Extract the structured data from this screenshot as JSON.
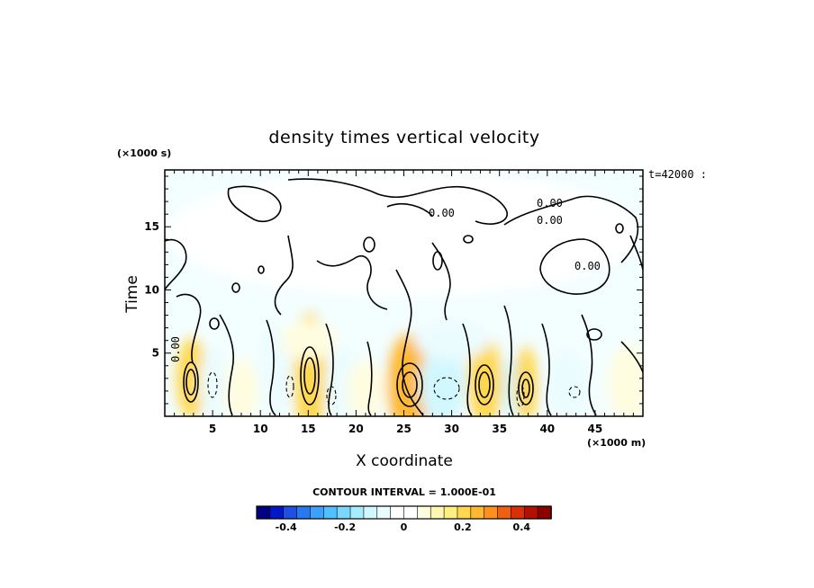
{
  "chart_data": {
    "type": "heatmap",
    "title": "density times vertical velocity",
    "xlabel": "X coordinate",
    "ylabel": "Time",
    "x_units": "(×1000 m)",
    "y_units": "(×1000 s)",
    "time_stamp": "t=42000 :",
    "xlim": [
      0,
      50
    ],
    "ylim": [
      0,
      19.5
    ],
    "x_ticks": [
      5,
      10,
      15,
      20,
      25,
      30,
      35,
      40,
      45
    ],
    "y_ticks": [
      5,
      10,
      15
    ],
    "contour_labels": [
      "0.00",
      "0.00",
      "0.00",
      "0.00",
      "0.00"
    ],
    "contour_interval_text": "CONTOUR INTERVAL = 1.000E-01",
    "colorbar": {
      "range": [
        -0.5,
        0.5
      ],
      "tick_values": [
        -0.4,
        -0.2,
        0,
        0.2,
        0.4
      ],
      "tick_labels": [
        "-0.4",
        "-0.2",
        "0",
        "0.2",
        "0.4"
      ],
      "colors_low_to_high": [
        "#000080",
        "#0018c8",
        "#1e50e6",
        "#2878f0",
        "#3ca0ff",
        "#50c0ff",
        "#78d8ff",
        "#a6ecff",
        "#d2f8ff",
        "#ebfcff",
        "#ffffff",
        "#ffffff",
        "#fffde0",
        "#fff8b0",
        "#ffee80",
        "#ffd850",
        "#ffb830",
        "#ff9020",
        "#f06010",
        "#d83008",
        "#b41000",
        "#8c0000"
      ]
    },
    "cells": [
      {
        "x": 2.8,
        "t": 3.0,
        "v": 0.21,
        "rx": 1.6,
        "rt": 3.2
      },
      {
        "x": 5.0,
        "t": 2.5,
        "v": -0.09,
        "rx": 1.4,
        "rt": 3.0
      },
      {
        "x": 8.0,
        "t": 2.0,
        "v": 0.08,
        "rx": 1.8,
        "rt": 2.6
      },
      {
        "x": 11.5,
        "t": 3.5,
        "v": -0.08,
        "rx": 1.6,
        "rt": 3.5
      },
      {
        "x": 15.2,
        "t": 3.2,
        "v": 0.22,
        "rx": 1.7,
        "rt": 5.0
      },
      {
        "x": 18.5,
        "t": 2.5,
        "v": -0.09,
        "rx": 1.8,
        "rt": 3.0
      },
      {
        "x": 21.0,
        "t": 2.0,
        "v": 0.05,
        "rx": 2.0,
        "rt": 2.5
      },
      {
        "x": 25.5,
        "t": 2.5,
        "v": 0.24,
        "rx": 2.2,
        "rt": 4.0
      },
      {
        "x": 29.0,
        "t": 2.5,
        "v": -0.1,
        "rx": 2.4,
        "rt": 3.2
      },
      {
        "x": 33.5,
        "t": 2.7,
        "v": 0.21,
        "rx": 1.8,
        "rt": 3.5
      },
      {
        "x": 36.3,
        "t": 2.3,
        "v": -0.12,
        "rx": 1.0,
        "rt": 2.5
      },
      {
        "x": 37.8,
        "t": 2.5,
        "v": 0.19,
        "rx": 1.2,
        "rt": 3.0
      },
      {
        "x": 42.0,
        "t": 2.5,
        "v": -0.07,
        "rx": 2.2,
        "rt": 2.8
      },
      {
        "x": 48.5,
        "t": 2.5,
        "v": 0.09,
        "rx": 2.2,
        "rt": 3.2
      },
      {
        "x": 30.0,
        "t": 6.0,
        "v": -0.05,
        "rx": 4.0,
        "rt": 1.5
      },
      {
        "x": 15.0,
        "t": 6.0,
        "v": 0.06,
        "rx": 3.0,
        "rt": 1.5
      },
      {
        "x": 25.0,
        "t": 14.5,
        "v": 0.02,
        "rx": 25.0,
        "rt": 5.0
      }
    ]
  }
}
